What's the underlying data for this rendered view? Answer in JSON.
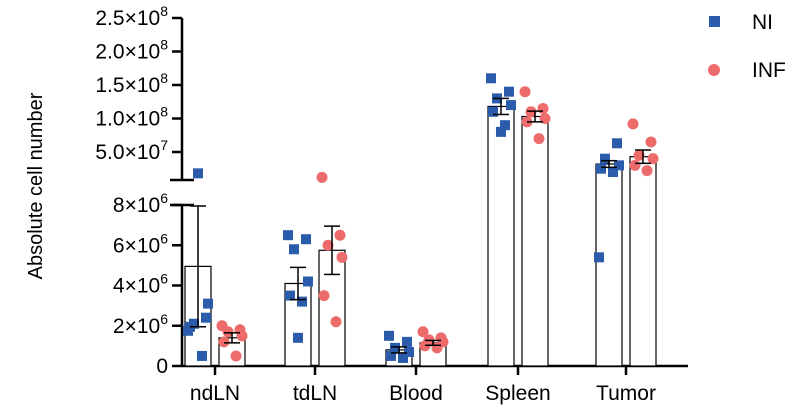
{
  "chart_data": {
    "type": "bar",
    "ylabel": "Absolute cell number",
    "categories": [
      "ndLN",
      "tdLN",
      "Blood",
      "Spleen",
      "Tumor"
    ],
    "colors": {
      "NI": "#2a5cab",
      "INF": "#ee6b6b"
    },
    "y_axis": {
      "segments": [
        {
          "range": [
            0,
            8000000
          ],
          "ticks": [
            0,
            2000000,
            4000000,
            6000000,
            8000000
          ]
        },
        {
          "range": [
            8000000,
            250000000
          ],
          "ticks": [
            50000000,
            100000000,
            150000000,
            200000000,
            250000000
          ]
        }
      ],
      "tick_labels": {
        "0": "0",
        "2000000": "2×10^6",
        "4000000": "4×10^6",
        "6000000": "6×10^6",
        "8000000": "8×10^6",
        "50000000": "5.0×10^7",
        "100000000": "1.0×10^8",
        "150000000": "1.5×10^8",
        "200000000": "2.0×10^8",
        "250000000": "2.5×10^8"
      }
    },
    "series": [
      {
        "name": "NI",
        "marker": "square",
        "means": [
          4950000,
          4100000,
          800000,
          118000000,
          32000000
        ],
        "errors": [
          3000000,
          800000,
          150000,
          12000000,
          5000000
        ],
        "points": [
          [
            1750000,
            2400000,
            2100000,
            3100000,
            1950000,
            500000,
            18000000
          ],
          [
            6500000,
            6300000,
            5800000,
            4200000,
            3500000,
            3200000,
            1400000
          ],
          [
            1500000,
            1200000,
            900000,
            700000,
            500000,
            400000
          ],
          [
            160000000,
            140000000,
            130000000,
            120000000,
            110000000,
            90000000,
            80000000
          ],
          [
            5400000,
            63000000,
            40000000,
            30000000,
            25000000,
            20000000
          ]
        ]
      },
      {
        "name": "INF",
        "marker": "circle",
        "means": [
          1400000,
          5750000,
          1150000,
          103000000,
          43000000
        ],
        "errors": [
          250000,
          1200000,
          120000,
          8000000,
          10000000
        ],
        "points": [
          [
            2000000,
            1800000,
            1700000,
            1500000,
            1200000,
            500000
          ],
          [
            12000000,
            6500000,
            6000000,
            5400000,
            3500000,
            2200000
          ],
          [
            1700000,
            1400000,
            1300000,
            1200000,
            1000000,
            900000
          ],
          [
            140000000,
            115000000,
            110000000,
            100000000,
            95000000,
            70000000
          ],
          [
            92000000,
            65000000,
            45000000,
            40000000,
            30000000,
            22000000
          ]
        ]
      }
    ]
  }
}
